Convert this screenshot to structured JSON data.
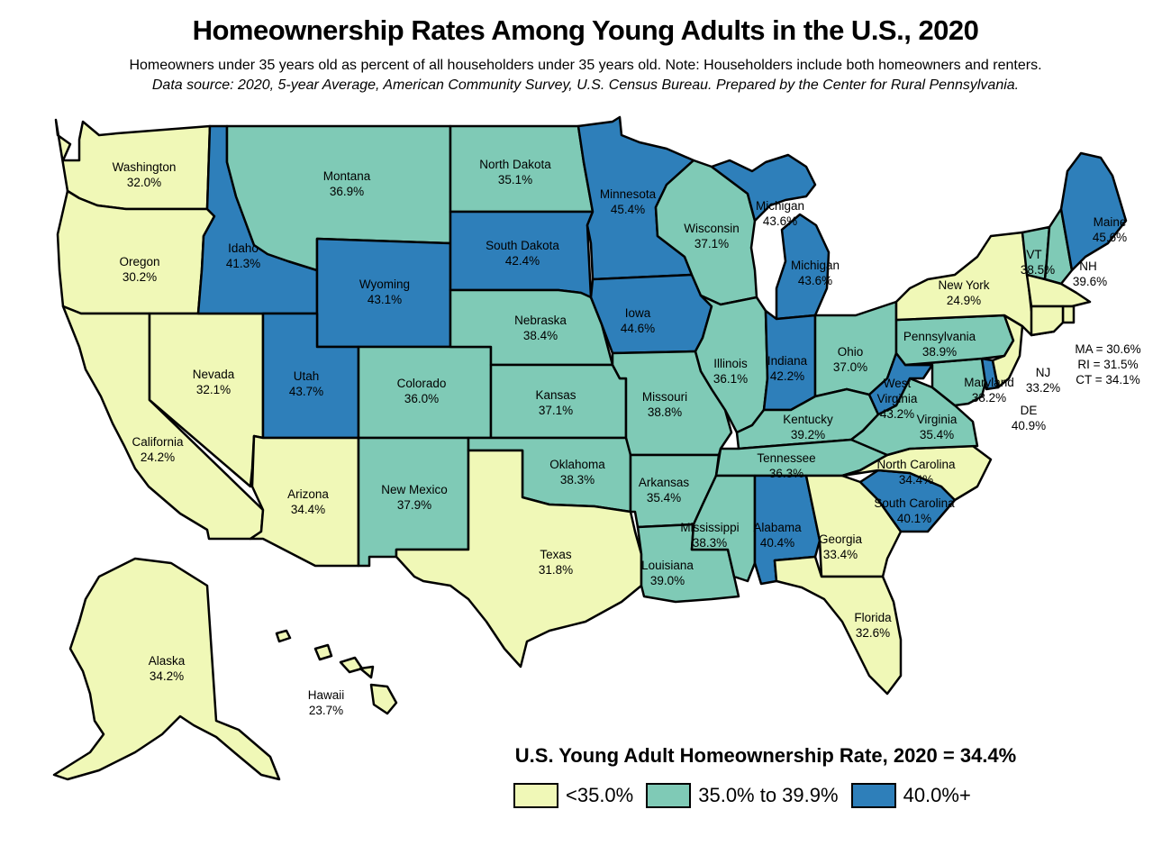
{
  "title": "Homeownership Rates Among Young Adults in the U.S., 2020",
  "subtitle": "Homeowners under 35 years old as percent of all householders under 35 years old. Note: Householders include both homeowners and renters.",
  "source": "Data source: 2020, 5-year Average, American Community Survey, U.S. Census Bureau. Prepared by the Center for Rural Pennsylvania.",
  "colors": {
    "low": "#f0f8b7",
    "mid": "#7fcab6",
    "high": "#2e7fba"
  },
  "legend": {
    "title": "U.S. Young Adult Homeownership Rate, 2020 = 34.4%",
    "items": [
      {
        "label": "<35.0%",
        "class": "low"
      },
      {
        "label": "35.0% to 39.9%",
        "class": "mid"
      },
      {
        "label": "40.0%+",
        "class": "high"
      }
    ]
  },
  "states": {
    "WA": {
      "name": "Washington",
      "value": "32.0%",
      "class": "low"
    },
    "OR": {
      "name": "Oregon",
      "value": "30.2%",
      "class": "low"
    },
    "CA": {
      "name": "California",
      "value": "24.2%",
      "class": "low"
    },
    "NV": {
      "name": "Nevada",
      "value": "32.1%",
      "class": "low"
    },
    "ID": {
      "name": "Idaho",
      "value": "41.3%",
      "class": "high"
    },
    "MT": {
      "name": "Montana",
      "value": "36.9%",
      "class": "mid"
    },
    "WY": {
      "name": "Wyoming",
      "value": "43.1%",
      "class": "high"
    },
    "UT": {
      "name": "Utah",
      "value": "43.7%",
      "class": "high"
    },
    "AZ": {
      "name": "Arizona",
      "value": "34.4%",
      "class": "low"
    },
    "CO": {
      "name": "Colorado",
      "value": "36.0%",
      "class": "mid"
    },
    "NM": {
      "name": "New Mexico",
      "value": "37.9%",
      "class": "mid"
    },
    "ND": {
      "name": "North Dakota",
      "value": "35.1%",
      "class": "mid"
    },
    "SD": {
      "name": "South Dakota",
      "value": "42.4%",
      "class": "high"
    },
    "NE": {
      "name": "Nebraska",
      "value": "38.4%",
      "class": "mid"
    },
    "KS": {
      "name": "Kansas",
      "value": "37.1%",
      "class": "mid"
    },
    "OK": {
      "name": "Oklahoma",
      "value": "38.3%",
      "class": "mid"
    },
    "TX": {
      "name": "Texas",
      "value": "31.8%",
      "class": "low"
    },
    "MN": {
      "name": "Minnesota",
      "value": "45.4%",
      "class": "high"
    },
    "IA": {
      "name": "Iowa",
      "value": "44.6%",
      "class": "high"
    },
    "MO": {
      "name": "Missouri",
      "value": "38.8%",
      "class": "mid"
    },
    "AR": {
      "name": "Arkansas",
      "value": "35.4%",
      "class": "mid"
    },
    "LA": {
      "name": "Louisiana",
      "value": "39.0%",
      "class": "mid"
    },
    "WI": {
      "name": "Wisconsin",
      "value": "37.1%",
      "class": "mid"
    },
    "IL": {
      "name": "Illinois",
      "value": "36.1%",
      "class": "mid"
    },
    "MI_UP": {
      "name": "Michigan",
      "value": "43.6%",
      "class": "high"
    },
    "MI": {
      "name": "Michigan",
      "value": "43.6%",
      "class": "high"
    },
    "IN": {
      "name": "Indiana",
      "value": "42.2%",
      "class": "high"
    },
    "OH": {
      "name": "Ohio",
      "value": "37.0%",
      "class": "mid"
    },
    "KY": {
      "name": "Kentucky",
      "value": "39.2%",
      "class": "mid"
    },
    "TN": {
      "name": "Tennessee",
      "value": "36.3%",
      "class": "mid"
    },
    "MS": {
      "name": "Mississippi",
      "value": "38.3%",
      "class": "mid"
    },
    "AL": {
      "name": "Alabama",
      "value": "40.4%",
      "class": "high"
    },
    "GA": {
      "name": "Georgia",
      "value": "33.4%",
      "class": "low"
    },
    "FL": {
      "name": "Florida",
      "value": "32.6%",
      "class": "low"
    },
    "SC": {
      "name": "South Carolina",
      "value": "40.1%",
      "class": "high"
    },
    "NC": {
      "name": "North Carolina",
      "value": "34.4%",
      "class": "low"
    },
    "VA": {
      "name": "Virginia",
      "value": "35.4%",
      "class": "mid"
    },
    "WV": {
      "name": "West Virginia",
      "value": "43.2%",
      "class": "high"
    },
    "MD": {
      "name": "Maryland",
      "value": "38.2%",
      "class": "mid"
    },
    "DE": {
      "name": "DE",
      "value": "40.9%",
      "class": "high"
    },
    "NJ": {
      "name": "NJ",
      "value": "33.2%",
      "class": "low"
    },
    "PA": {
      "name": "Pennsylvania",
      "value": "38.9%",
      "class": "mid"
    },
    "NY": {
      "name": "New York",
      "value": "24.9%",
      "class": "low"
    },
    "VT": {
      "name": "VT",
      "value": "38.5%",
      "class": "mid"
    },
    "NH": {
      "name": "NH",
      "value": "39.6%",
      "class": "mid"
    },
    "ME": {
      "name": "Maine",
      "value": "45.6%",
      "class": "high"
    },
    "MA": {
      "name": "MA",
      "value": "30.6%",
      "class": "low"
    },
    "RI": {
      "name": "RI",
      "value": "31.5%",
      "class": "low"
    },
    "CT": {
      "name": "CT",
      "value": "34.1%",
      "class": "low"
    },
    "AK": {
      "name": "Alaska",
      "value": "34.2%",
      "class": "low"
    },
    "HI": {
      "name": "Hawaii",
      "value": "23.7%",
      "class": "low"
    }
  },
  "ne_note": {
    "ma": "MA = 30.6%",
    "ri": "RI = 31.5%",
    "ct": "CT = 34.1%"
  }
}
